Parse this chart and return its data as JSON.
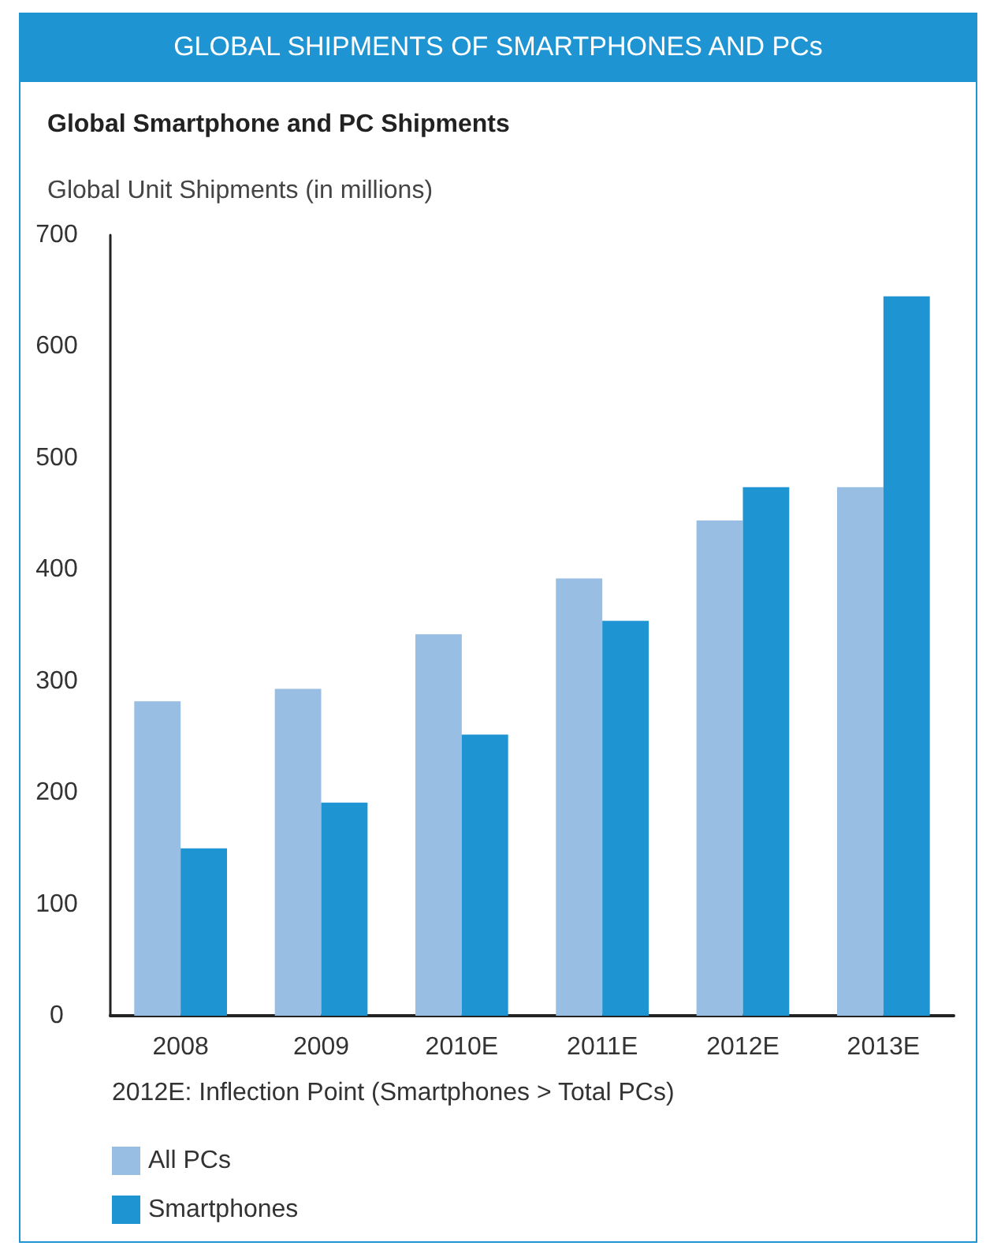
{
  "chart_data": {
    "type": "bar",
    "title": "GLOBAL SHIPMENTS OF SMARTPHONES AND PCs",
    "subtitle": "Global Smartphone and PC Shipments",
    "ylabel": "Global Unit Shipments (in millions)",
    "categories": [
      "2008",
      "2009",
      "2010E",
      "2011E",
      "2012E",
      "2013E"
    ],
    "series": [
      {
        "name": "All PCs",
        "color": "#99bee4",
        "values": [
          282,
          293,
          342,
          392,
          444,
          474
        ]
      },
      {
        "name": "Smartphones",
        "color": "#1e94d2",
        "values": [
          150,
          191,
          252,
          354,
          474,
          645
        ]
      }
    ],
    "ylim": [
      0,
      700
    ],
    "yticks": [
      0,
      100,
      200,
      300,
      400,
      500,
      600,
      700
    ],
    "grid": false,
    "legend": "bottom left",
    "annotations": [
      "2012E: Inflection Point (Smartphones > Total PCs)"
    ]
  }
}
